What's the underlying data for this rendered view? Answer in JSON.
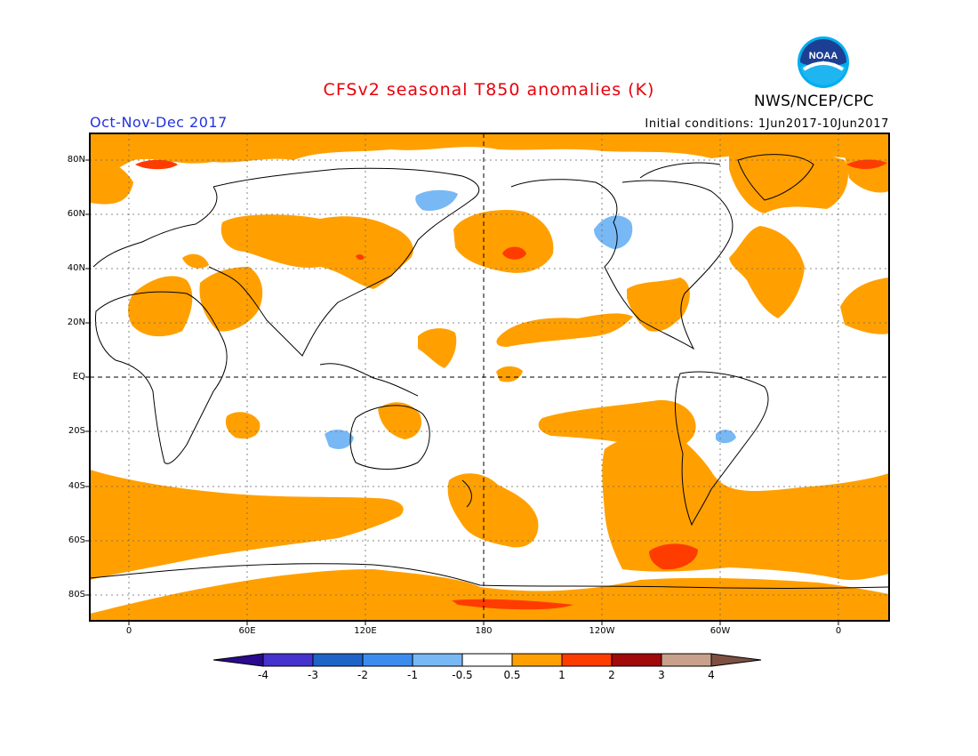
{
  "title": "CFSv2 seasonal T850 anomalies (K)",
  "season": "Oct-Nov-Dec 2017",
  "initial_conditions": "Initial conditions: 1Jun2017-10Jun2017",
  "agency": "NWS/NCEP/CPC",
  "logo_text": "NOAA",
  "map": {
    "lat_labels": [
      "80N",
      "60N",
      "40N",
      "20N",
      "EQ",
      "20S",
      "40S",
      "60S",
      "80S"
    ],
    "lon_labels": [
      "0",
      "60E",
      "120E",
      "180",
      "120W",
      "60W",
      "0"
    ]
  },
  "colorbar": {
    "labels": [
      "-4",
      "-3",
      "-2",
      "-1",
      "-0.5",
      "0.5",
      "1",
      "2",
      "3",
      "4"
    ],
    "colors": [
      "#2a0a8f",
      "#4433cc",
      "#1e64c8",
      "#3c8cf0",
      "#78b8f5",
      "#ffffff",
      "#ffa000",
      "#ff3c00",
      "#a00a0a",
      "#c8a08c",
      "#7d5041"
    ]
  }
}
